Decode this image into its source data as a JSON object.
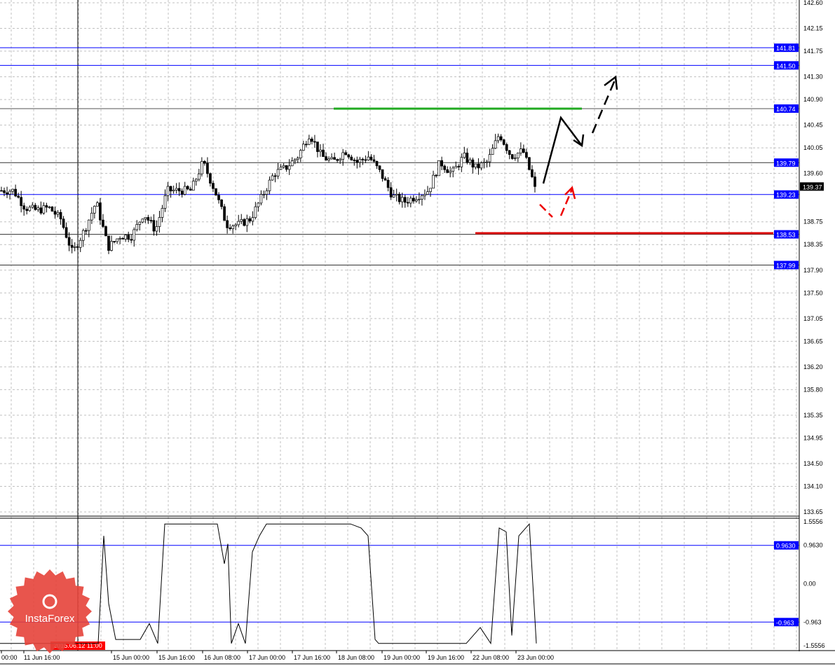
{
  "chart_data": [
    {
      "type": "candlestick",
      "timeframe": "H1",
      "ylim": [
        133.65,
        142.6
      ],
      "y_ticks": [
        "142.60",
        "142.15",
        "141.75",
        "141.30",
        "140.90",
        "140.45",
        "140.05",
        "139.60",
        "138.75",
        "138.35",
        "137.90",
        "137.50",
        "137.05",
        "136.65",
        "136.20",
        "135.80",
        "135.35",
        "134.95",
        "134.50",
        "134.10",
        "133.65"
      ],
      "x_ticks": [
        "00:00",
        "11 Jun 16:00",
        "15 Jun 00:00",
        "15 Jun 16:00",
        "16 Jun 08:00",
        "17 Jun 00:00",
        "17 Jun 16:00",
        "18 Jun 08:00",
        "19 Jun 00:00",
        "19 Jun 16:00",
        "22 Jun 08:00",
        "23 Jun 00:00"
      ],
      "crosshair_time": "2015.06.12 11:00",
      "current_price": "139.37",
      "grid": true,
      "price_path": [
        139.3,
        139.3,
        139.0,
        138.95,
        139.0,
        138.8,
        138.2,
        138.6,
        139.1,
        138.3,
        138.5,
        138.5,
        138.9,
        138.6,
        139.3,
        139.3,
        139.3,
        139.8,
        139.3,
        138.7,
        138.7,
        138.8,
        139.2,
        139.6,
        139.7,
        139.9,
        140.3,
        139.9,
        139.8,
        140.0,
        139.8,
        139.9,
        139.6,
        139.2,
        139.1,
        139.2,
        139.3,
        139.8,
        139.6,
        139.9,
        139.7,
        139.8,
        140.3,
        139.9,
        140.0,
        139.37
      ],
      "levels": [
        {
          "price": "141.81",
          "color": "#0000ff"
        },
        {
          "price": "141.50",
          "color": "#0000ff"
        },
        {
          "price": "140.74",
          "color": "#555555"
        },
        {
          "price": "139.79",
          "color": "#333333"
        },
        {
          "price": "139.23",
          "color": "#0000ff"
        },
        {
          "price": "138.53",
          "color": "#333333"
        },
        {
          "price": "137.99",
          "color": "#333333"
        }
      ],
      "resistance_line": {
        "price": 140.74,
        "color": "#22aa22"
      },
      "support_line": {
        "price": 138.53,
        "color": "#dd0000"
      }
    },
    {
      "type": "line",
      "ylim": [
        -1.5556,
        1.5556
      ],
      "y_ticks": [
        "1.5556",
        "0.9630",
        "0.00",
        "-0.963",
        "-1.5556"
      ],
      "levels": [
        "0.9630",
        "-0.963"
      ],
      "values": [
        -1.5,
        -1.5,
        1.2,
        -0.5,
        -1.4,
        -1.4,
        -1.0,
        -1.5,
        1.5,
        1.5,
        0.5,
        1.0,
        -1.5,
        -1.0,
        -1.5,
        0.8,
        1.2,
        1.5,
        1.5,
        1.4,
        1.2,
        -1.4,
        -1.5,
        -1.5,
        -1.1,
        -1.5,
        1.4,
        1.3,
        -1.3,
        1.2,
        1.5,
        -1.5
      ]
    }
  ],
  "logo": "InstaForex",
  "colors": {
    "level": "#0000ff",
    "tag_bg": "#0000ff",
    "crosshair_tag": "#ff0000",
    "current_tag": "#000000"
  }
}
